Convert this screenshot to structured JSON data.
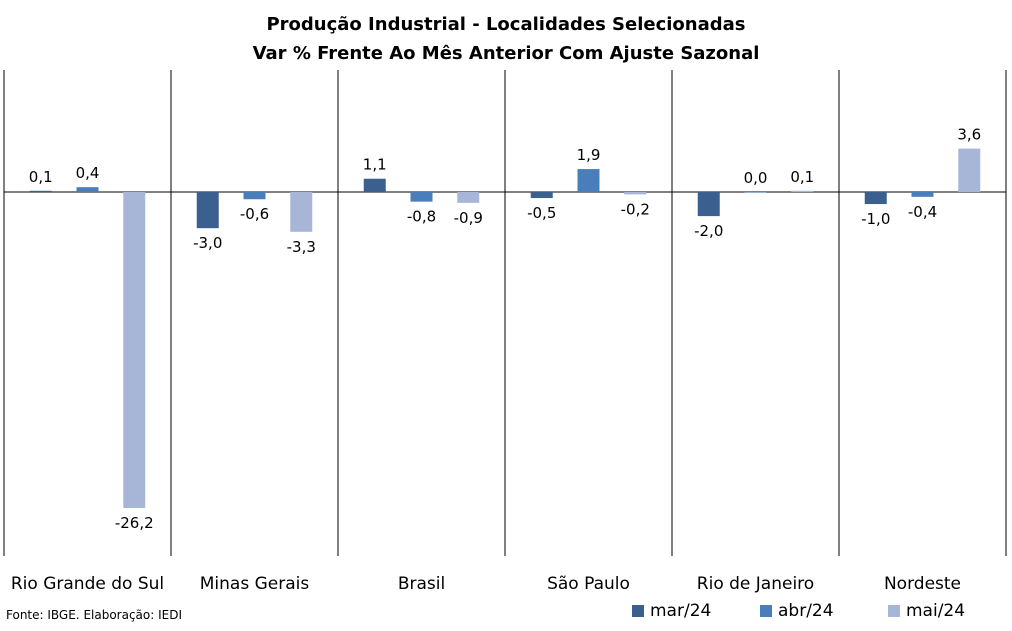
{
  "chart_data": {
    "type": "bar",
    "title": "Produção Industrial - Localidades Selecionadas",
    "subtitle": "Var % Frente Ao Mês Anterior Com Ajuste Sazonal",
    "categories": [
      "Rio Grande do Sul",
      "Minas Gerais",
      "Brasil",
      "São Paulo",
      "Rio de Janeiro",
      "Nordeste"
    ],
    "series": [
      {
        "name": "mar/24",
        "color": "#3B5F8F",
        "values": [
          0.1,
          -3.0,
          1.1,
          -0.5,
          -2.0,
          -1.0
        ],
        "labels": [
          "0,1",
          "-3,0",
          "1,1",
          "-0,5",
          "-2,0",
          "-1,0"
        ]
      },
      {
        "name": "abr/24",
        "color": "#4A7EBB",
        "values": [
          0.4,
          -0.6,
          -0.8,
          1.9,
          0.0,
          -0.4
        ],
        "labels": [
          "0,4",
          "-0,6",
          "-0,8",
          "1,9",
          "0,0",
          "-0,4"
        ]
      },
      {
        "name": "mai/24",
        "color": "#A7B6D6",
        "values": [
          -26.2,
          -3.3,
          -0.9,
          -0.2,
          0.1,
          3.6
        ],
        "labels": [
          "-26,2",
          "-3,3",
          "-0,9",
          "-0,2",
          "0,1",
          "3,6"
        ]
      }
    ],
    "ylim": [
      -30,
      10
    ],
    "grid": false,
    "legend_position": "bottom-right"
  },
  "source": "Fonte: IBGE. Elaboração: IEDI"
}
